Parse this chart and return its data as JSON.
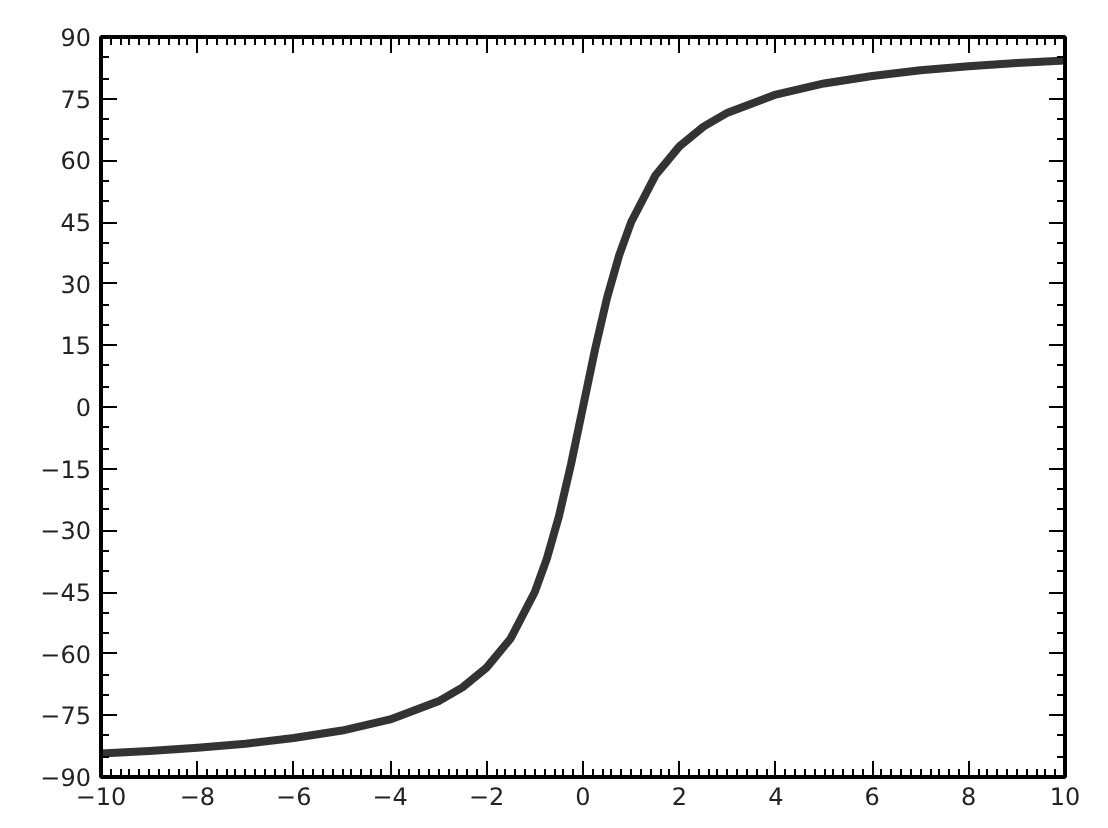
{
  "chart_data": {
    "type": "line",
    "x": [
      -10,
      -9,
      -8,
      -7,
      -6,
      -5,
      -4,
      -3,
      -2.5,
      -2,
      -1.5,
      -1,
      -0.75,
      -0.5,
      -0.25,
      0,
      0.25,
      0.5,
      0.75,
      1,
      1.5,
      2,
      2.5,
      3,
      4,
      5,
      6,
      7,
      8,
      9,
      10
    ],
    "series": [
      {
        "color": "#333333",
        "values": [
          -84.3,
          -83.7,
          -82.9,
          -81.9,
          -80.5,
          -78.7,
          -76.0,
          -71.6,
          -68.2,
          -63.4,
          -56.3,
          -45.0,
          -36.9,
          -26.6,
          -14.0,
          0,
          14.0,
          26.6,
          36.9,
          45.0,
          56.3,
          63.4,
          68.2,
          71.6,
          76.0,
          78.7,
          80.5,
          81.9,
          82.9,
          83.7,
          84.3
        ]
      }
    ],
    "xlim": [
      -10,
      10
    ],
    "ylim": [
      -90,
      90
    ],
    "xticks": [
      -10,
      -8,
      -6,
      -4,
      -2,
      0,
      2,
      4,
      6,
      8,
      10
    ],
    "yticks": [
      -90,
      -75,
      -60,
      -45,
      -30,
      -15,
      0,
      15,
      30,
      45,
      60,
      75,
      90
    ],
    "grid": false,
    "marker": "none",
    "line_style": "solid"
  }
}
